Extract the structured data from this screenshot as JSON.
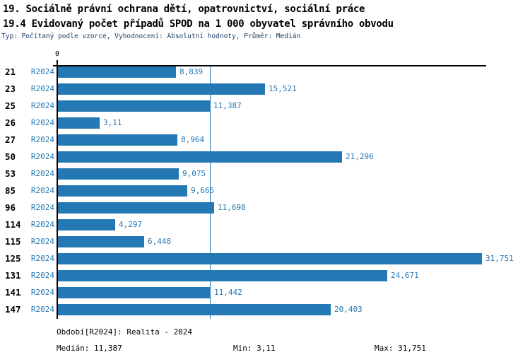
{
  "header": {
    "title_line1": "19. Sociálně právní ochrana dětí, opatrovnictví, sociální práce",
    "title_line2": "19.4 Evidovaný počet případů SPOD na 1 000 obyvatel správního obvodu",
    "subtitle": "Typ: Počítaný podle vzorce, Vyhodnocení: Absolutní hodnoty, Průměr: Medián"
  },
  "chart_data": {
    "type": "bar",
    "orientation": "horizontal",
    "title": "19.4 Evidovaný počet případů SPOD na 1 000 obyvatel správního obvodu",
    "categories": [
      "21",
      "23",
      "25",
      "26",
      "27",
      "50",
      "53",
      "85",
      "96",
      "114",
      "115",
      "125",
      "131",
      "141",
      "147"
    ],
    "series": [
      {
        "name": "R2024",
        "values": [
          8.839,
          15.521,
          11.387,
          3.11,
          8.964,
          21.296,
          9.075,
          9.665,
          11.698,
          4.297,
          6.448,
          31.751,
          24.671,
          11.442,
          20.403
        ],
        "value_labels": [
          "8,839",
          "15,521",
          "11,387",
          "3,11",
          "8,964",
          "21,296",
          "9,075",
          "9,665",
          "11,698",
          "4,297",
          "6,448",
          "31,751",
          "24,671",
          "11,442",
          "20,403"
        ]
      }
    ],
    "axis_origin_tick_label": "0",
    "xlim": [
      0,
      31.751
    ],
    "median_value": 11.387,
    "median_line": true,
    "grid": false,
    "legend_position": "none",
    "bar_color": "#2478b4",
    "median_line_color": "#2478b4",
    "value_label_color": "#2478b4"
  },
  "footer": {
    "period_label": "Období[R2024]: Realita - 2024",
    "median_label": "Medián: 11,387",
    "min_label": "Min: 3,11",
    "max_label": "Max: 31,751"
  },
  "colors": {
    "accent_blue": "#2478b4",
    "title_black": "#000000",
    "subtitle_navy": "#1e3f66",
    "background": "#ffffff"
  }
}
